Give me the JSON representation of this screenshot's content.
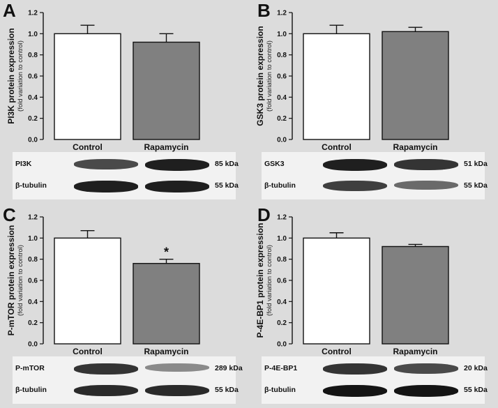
{
  "chart_data": [
    {
      "panel": "A",
      "type": "bar",
      "categories": [
        "Control",
        "Rapamycin"
      ],
      "values": [
        1.0,
        0.92
      ],
      "errors": [
        0.08,
        0.08
      ],
      "bar_colors": [
        "#ffffff",
        "#808080"
      ],
      "ylabel": "PI3K protein expression",
      "ylabel_sub": "(fold variation to control)",
      "ylim": [
        0,
        1.2
      ],
      "yticks": [
        "0.0",
        "0.2",
        "0.4",
        "0.6",
        "0.8",
        "1.0",
        "1.2"
      ],
      "significance": [
        "",
        ""
      ],
      "blot": [
        {
          "protein": "PI3K",
          "kda": "85 kDa",
          "intensity": [
            0.75,
            0.95
          ]
        },
        {
          "protein": "β-tubulin",
          "kda": "55 kDa",
          "intensity": [
            0.95,
            0.95
          ]
        }
      ]
    },
    {
      "panel": "B",
      "type": "bar",
      "categories": [
        "Control",
        "Rapamycin"
      ],
      "values": [
        1.0,
        1.02
      ],
      "errors": [
        0.08,
        0.04
      ],
      "bar_colors": [
        "#ffffff",
        "#808080"
      ],
      "ylabel": "GSK3 protein expression",
      "ylabel_sub": "(fold variation to control)",
      "ylim": [
        0,
        1.2
      ],
      "yticks": [
        "0.0",
        "0.2",
        "0.4",
        "0.6",
        "0.8",
        "1.0",
        "1.2"
      ],
      "significance": [
        "",
        ""
      ],
      "blot": [
        {
          "protein": "GSK3",
          "kda": "51 kDa",
          "intensity": [
            0.95,
            0.85
          ]
        },
        {
          "protein": "β-tubulin",
          "kda": "55 kDa",
          "intensity": [
            0.8,
            0.6
          ]
        }
      ]
    },
    {
      "panel": "C",
      "type": "bar",
      "categories": [
        "Control",
        "Rapamycin"
      ],
      "values": [
        1.0,
        0.76
      ],
      "errors": [
        0.07,
        0.04
      ],
      "bar_colors": [
        "#ffffff",
        "#808080"
      ],
      "ylabel": "P-mTOR protein expression",
      "ylabel_sub": "(fold variation to control)",
      "ylim": [
        0,
        1.2
      ],
      "yticks": [
        "0.0",
        "0.2",
        "0.4",
        "0.6",
        "0.8",
        "1.0",
        "1.2"
      ],
      "significance": [
        "",
        "*"
      ],
      "blot": [
        {
          "protein": "P-mTOR",
          "kda": "289 kDa",
          "intensity": [
            0.85,
            0.45
          ]
        },
        {
          "protein": "β-tubulin",
          "kda": "55 kDa",
          "intensity": [
            0.9,
            0.9
          ]
        }
      ]
    },
    {
      "panel": "D",
      "type": "bar",
      "categories": [
        "Control",
        "Rapamycin"
      ],
      "values": [
        1.0,
        0.92
      ],
      "errors": [
        0.05,
        0.02
      ],
      "bar_colors": [
        "#ffffff",
        "#808080"
      ],
      "ylabel": "P-4E-BP1 protein expression",
      "ylabel_sub": "(fold variation to control)",
      "ylim": [
        0,
        1.2
      ],
      "yticks": [
        "0.0",
        "0.2",
        "0.4",
        "0.6",
        "0.8",
        "1.0",
        "1.2"
      ],
      "significance": [
        "",
        ""
      ],
      "blot": [
        {
          "protein": "P-4E-BP1",
          "kda": "20 kDa",
          "intensity": [
            0.85,
            0.75
          ]
        },
        {
          "protein": "β-tubulin",
          "kda": "55 kDa",
          "intensity": [
            1.0,
            1.0
          ]
        }
      ]
    }
  ]
}
